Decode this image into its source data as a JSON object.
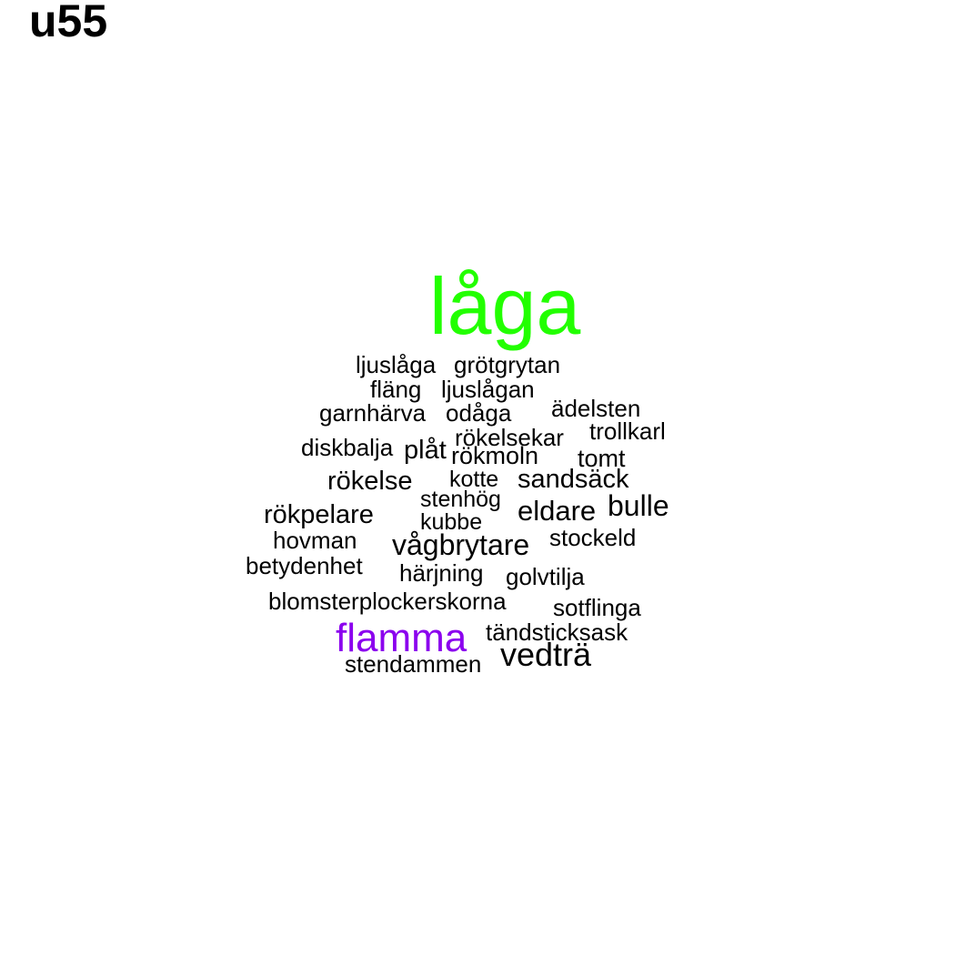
{
  "title": "u55",
  "colors": {
    "default_word": "#000000",
    "top_word": "#22ff00",
    "second_word": "#8b00ee",
    "background": "#ffffff"
  },
  "words": [
    {
      "text": "låga",
      "color": "#22ff00"
    },
    {
      "text": "ljuslåga"
    },
    {
      "text": "grötgrytan"
    },
    {
      "text": "fläng"
    },
    {
      "text": "ljuslågan"
    },
    {
      "text": "ädelsten"
    },
    {
      "text": "garnhärva"
    },
    {
      "text": "odåga"
    },
    {
      "text": "trollkarl"
    },
    {
      "text": "rökelsekar"
    },
    {
      "text": "diskbalja"
    },
    {
      "text": "plåt"
    },
    {
      "text": "rökmoln"
    },
    {
      "text": "tomt"
    },
    {
      "text": "rökelse"
    },
    {
      "text": "kotte"
    },
    {
      "text": "sandsäck"
    },
    {
      "text": "stenhög"
    },
    {
      "text": "bulle"
    },
    {
      "text": "eldare"
    },
    {
      "text": "rökpelare"
    },
    {
      "text": "kubbe"
    },
    {
      "text": "hovman"
    },
    {
      "text": "vågbrytare"
    },
    {
      "text": "stockeld"
    },
    {
      "text": "betydenhet"
    },
    {
      "text": "härjning"
    },
    {
      "text": "golvtilja"
    },
    {
      "text": "blomsterplockerskorna"
    },
    {
      "text": "sotflinga"
    },
    {
      "text": "flamma",
      "color": "#8b00ee"
    },
    {
      "text": "tändsticksask"
    },
    {
      "text": "vedträ"
    },
    {
      "text": "stendammen"
    }
  ]
}
